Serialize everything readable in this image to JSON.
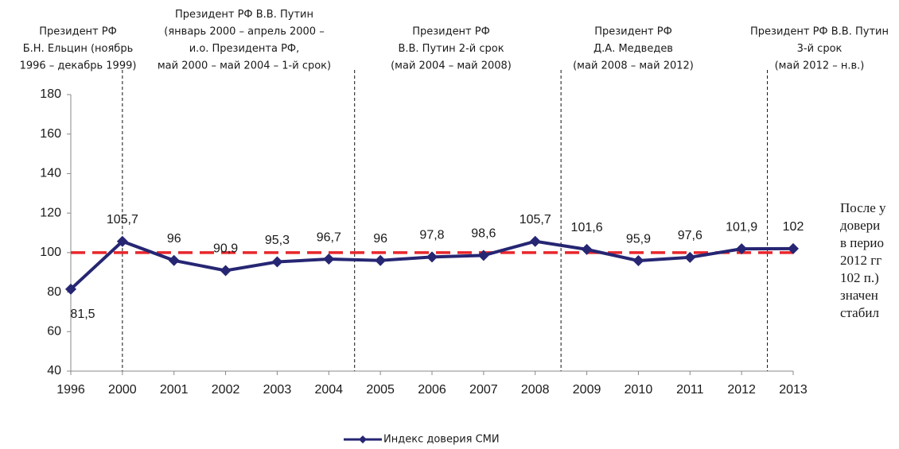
{
  "chart_data": {
    "type": "line",
    "categories": [
      "1996",
      "2000",
      "2001",
      "2002",
      "2003",
      "2004",
      "2005",
      "2006",
      "2007",
      "2008",
      "2009",
      "2010",
      "2011",
      "2012",
      "2013"
    ],
    "series": [
      {
        "name": "Индекс доверия СМИ",
        "color": "#262673",
        "values": [
          81.5,
          105.7,
          96,
          90.9,
          95.3,
          96.7,
          96,
          97.8,
          98.6,
          105.7,
          101.6,
          95.9,
          97.6,
          101.9,
          102
        ],
        "value_labels": [
          "81,5",
          "105,7",
          "96",
          "90,9",
          "95,3",
          "96,7",
          "96",
          "97,8",
          "98,6",
          "105,7",
          "101,6",
          "95,9",
          "97,6",
          "101,9",
          "102"
        ]
      }
    ],
    "ylim": [
      40,
      180
    ],
    "yticks": [
      40,
      60,
      80,
      100,
      120,
      140,
      160,
      180
    ],
    "reference_line": {
      "value": 100,
      "color": "#e8262b"
    },
    "legend": "bottom",
    "annotations": [
      [
        "Президент РФ",
        "Б.Н. Ельцин (ноябрь",
        "1996 – декабрь 1999)"
      ],
      [
        "Президент РФ В.В. Путин",
        "(январь 2000 – апрель 2000 –",
        "и.о. Президента РФ,",
        "май 2000 – май 2004 – 1-й срок)"
      ],
      [
        "Президент РФ",
        "В.В. Путин 2-й срок",
        "(май 2004 –  май 2008)"
      ],
      [
        "Президент РФ",
        "Д.А. Медведев",
        "(май 2008 –  май 2012)"
      ],
      [
        "Президент РФ В.В. Путин",
        "3-й срок",
        "(май 2012 – н.в.)"
      ]
    ],
    "side_text": [
      "После у",
      "довери",
      "в перио",
      "2012 гг",
      "102 п.)",
      "значен",
      "стабил"
    ]
  }
}
